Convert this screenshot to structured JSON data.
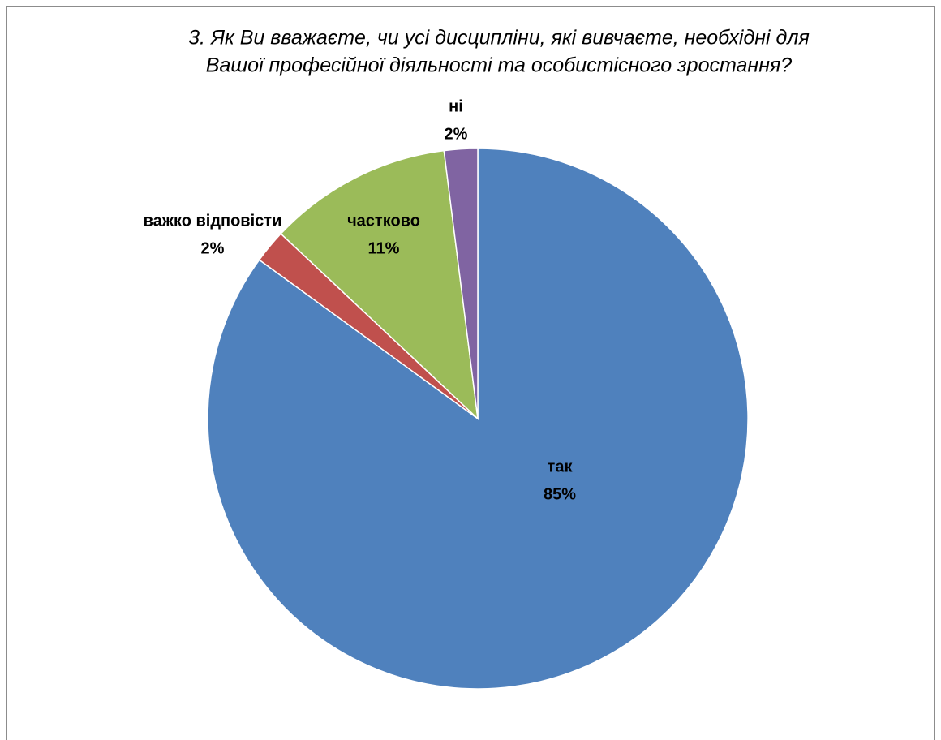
{
  "chart_data": {
    "type": "pie",
    "title": [
      "3. Як Ви вважаєте, чи усі дисципліни, які вивчаєте, необхідні для",
      "Вашої професійної діяльності та особистісного зростання?"
    ],
    "categories": [
      "так",
      "важко відповісти",
      "частково",
      "ні"
    ],
    "values": [
      85,
      2,
      11,
      2
    ],
    "value_labels": [
      "85%",
      "2%",
      "11%",
      "2%"
    ],
    "colors": [
      "#4f81bd",
      "#c0504d",
      "#9bbb59",
      "#8064a2"
    ]
  }
}
